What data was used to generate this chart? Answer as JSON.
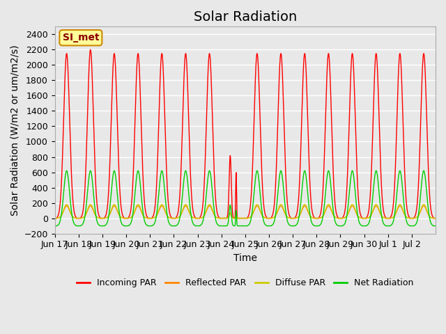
{
  "title": "Solar Radiation",
  "ylabel": "Solar Radiation (W/m2 or um/m2/s)",
  "xlabel": "Time",
  "ylim": [
    -200,
    2500
  ],
  "yticks": [
    -200,
    0,
    200,
    400,
    600,
    800,
    1000,
    1200,
    1400,
    1600,
    1800,
    2000,
    2200,
    2400
  ],
  "plot_bg_color": "#e8e8e8",
  "grid_color": "#ffffff",
  "annotation_text": "SI_met",
  "annotation_bg": "#ffff99",
  "annotation_border": "#cc8800",
  "colors": {
    "incoming_par": "#ff0000",
    "reflected_par": "#ff8800",
    "diffuse_par": "#cccc00",
    "net_radiation": "#00cc00"
  },
  "legend_labels": [
    "Incoming PAR",
    "Reflected PAR",
    "Diffuse PAR",
    "Net Radiation"
  ],
  "x_tick_labels": [
    "Jun 17",
    "Jun 18",
    "Jun 19",
    "Jun 20",
    "Jun 21",
    "Jun 22",
    "Jun 23",
    "Jun 24",
    "Jun 25",
    "Jun 26",
    "Jun 27",
    "Jun 28",
    "Jun 29",
    "Jun 30",
    "Jul 1",
    "Jul 2"
  ],
  "n_days": 16,
  "peak_incoming": 2150,
  "peak_incoming_18": 2200,
  "peak_net": 620,
  "peak_diffuse": 180,
  "peak_reflected": 160,
  "night_net": -100,
  "title_fontsize": 14,
  "label_fontsize": 10,
  "tick_fontsize": 9
}
